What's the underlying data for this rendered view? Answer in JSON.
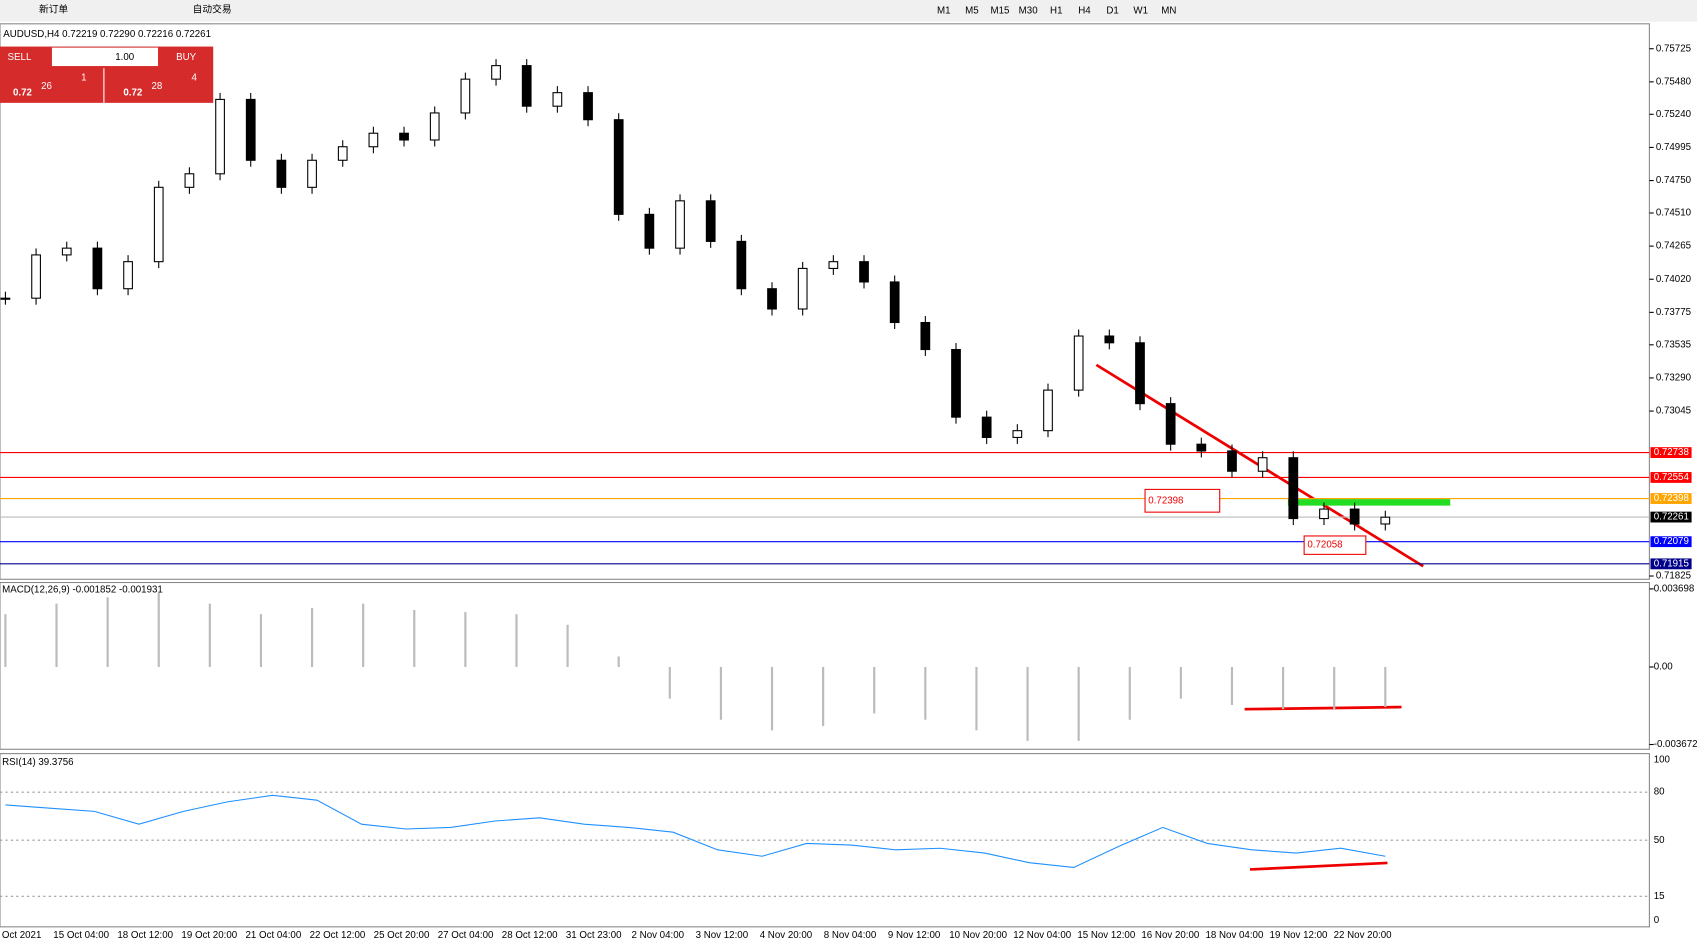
{
  "toolbar": {
    "buttons": [
      "新订单",
      "自动交易"
    ],
    "timeframes": [
      "M1",
      "M5",
      "M15",
      "M30",
      "H1",
      "H4",
      "D1",
      "W1",
      "MN"
    ]
  },
  "chart": {
    "header": "AUDUSD,H4  0.72219 0.72290 0.72216 0.72261",
    "trade_panel": {
      "sell": "SELL",
      "buy": "BUY",
      "lots": "1.00",
      "bid_prefix": "0.72",
      "bid_big": "26",
      "bid_small": "1",
      "ask_prefix": "0.72",
      "ask_big": "28",
      "ask_small": "4"
    },
    "price_ticks": [
      {
        "value": 0.75725,
        "label": "0.75725"
      },
      {
        "value": 0.7548,
        "label": "0.75480"
      },
      {
        "value": 0.7524,
        "label": "0.75240"
      },
      {
        "value": 0.74995,
        "label": "0.74995"
      },
      {
        "value": 0.7475,
        "label": "0.74750"
      },
      {
        "value": 0.7451,
        "label": "0.74510"
      },
      {
        "value": 0.74265,
        "label": "0.74265"
      },
      {
        "value": 0.7402,
        "label": "0.74020"
      },
      {
        "value": 0.73775,
        "label": "0.73775"
      },
      {
        "value": 0.73535,
        "label": "0.73535"
      },
      {
        "value": 0.7329,
        "label": "0.73290"
      },
      {
        "value": 0.73045,
        "label": "0.73045"
      },
      {
        "value": 0.71825,
        "label": "0.71825"
      }
    ],
    "levels": [
      {
        "value": 0.72738,
        "label": "0.72738",
        "color": "#ff0000"
      },
      {
        "value": 0.72554,
        "label": "0.72554",
        "color": "#ff0000"
      },
      {
        "value": 0.72398,
        "label": "0.72398",
        "color": "#ffa500"
      },
      {
        "value": 0.72261,
        "label": "0.72261",
        "color": "#000000"
      },
      {
        "value": 0.72079,
        "label": "0.72079",
        "color": "#0000ff"
      },
      {
        "value": 0.71915,
        "label": "0.71915",
        "color": "#00008b"
      }
    ],
    "annotations": [
      "0.72398",
      "0.72058"
    ],
    "closes": [
      0.7388,
      0.742,
      0.7425,
      0.7395,
      0.7415,
      0.747,
      0.748,
      0.7535,
      0.749,
      0.747,
      0.749,
      0.75,
      0.751,
      0.7505,
      0.7525,
      0.755,
      0.756,
      0.753,
      0.754,
      0.752,
      0.745,
      0.7425,
      0.746,
      0.743,
      0.7395,
      0.738,
      0.741,
      0.7415,
      0.74,
      0.737,
      0.735,
      0.73,
      0.7285,
      0.729,
      0.732,
      0.736,
      0.7355,
      0.731,
      0.728,
      0.7275,
      0.726,
      0.727,
      0.7225,
      0.7232,
      0.7221,
      0.7226
    ],
    "time_labels": [
      "Oct 2021",
      "15 Oct 04:00",
      "18 Oct 12:00",
      "19 Oct 20:00",
      "21 Oct 04:00",
      "22 Oct 12:00",
      "25 Oct 20:00",
      "27 Oct 04:00",
      "28 Oct 12:00",
      "31 Oct 23:00",
      "2 Nov 04:00",
      "3 Nov 12:00",
      "4 Nov 20:00",
      "8 Nov 04:00",
      "9 Nov 12:00",
      "10 Nov 20:00",
      "12 Nov 04:00",
      "15 Nov 12:00",
      "16 Nov 20:00",
      "18 Nov 04:00",
      "19 Nov 12:00",
      "22 Nov 20:00"
    ]
  },
  "macd": {
    "label": "MACD(12,26,9) -0.001852 -0.001931",
    "ticks": [
      {
        "value": 0.003698,
        "label": "0.003698"
      },
      {
        "value": 0,
        "label": "0.00"
      },
      {
        "value": -0.003672,
        "label": "-0.003672"
      }
    ],
    "histogram": [
      0.0025,
      0.003,
      0.0033,
      0.0035,
      0.003,
      0.0025,
      0.0028,
      0.003,
      0.0027,
      0.0026,
      0.0025,
      0.002,
      0.0005,
      -0.0015,
      -0.0025,
      -0.003,
      -0.0028,
      -0.0022,
      -0.0025,
      -0.003,
      -0.0035,
      -0.0035,
      -0.0025,
      -0.0015,
      -0.0018,
      -0.002,
      -0.002,
      -0.0019
    ]
  },
  "rsi": {
    "label": "RSI(14) 39.3756",
    "ticks": [
      100,
      80,
      50,
      15,
      0
    ],
    "values": [
      72,
      70,
      68,
      60,
      68,
      74,
      78,
      75,
      60,
      57,
      58,
      62,
      64,
      60,
      58,
      55,
      44,
      40,
      48,
      47,
      44,
      45,
      42,
      36,
      33,
      46,
      58,
      48,
      44,
      42,
      45,
      40
    ]
  }
}
